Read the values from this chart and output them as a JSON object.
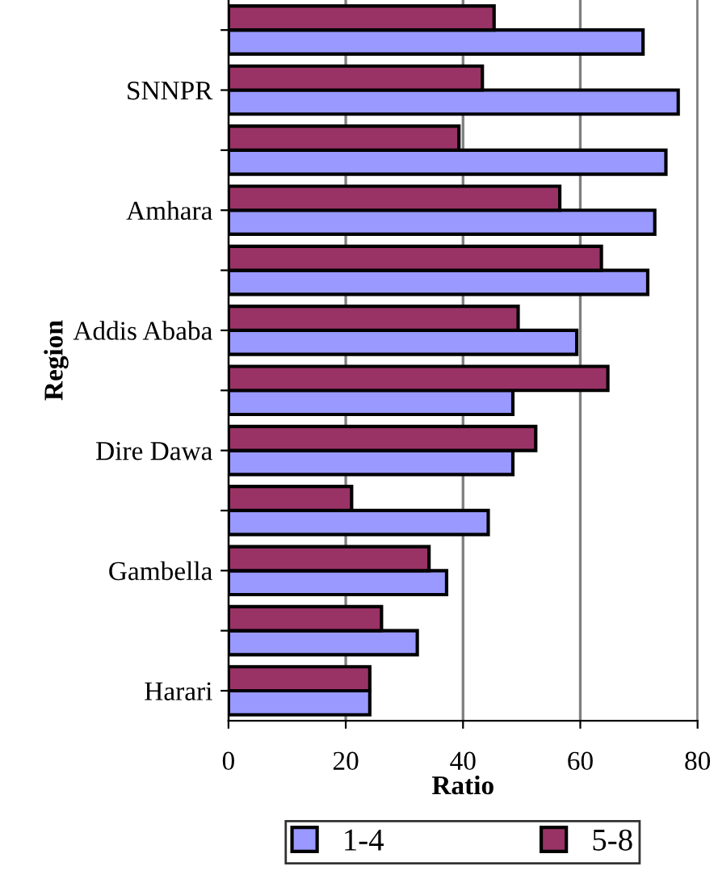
{
  "chart_data": {
    "type": "bar",
    "orientation": "horizontal",
    "xlabel": "Ratio",
    "ylabel": "Region",
    "categories": [
      null,
      "SNNPR",
      null,
      "Amhara",
      null,
      "Addis Ababa",
      null,
      "Dire Dawa",
      null,
      "Gambella",
      null,
      "Harari"
    ],
    "series": [
      {
        "name": "1-4",
        "color": "#9999ff",
        "values": [
          70.7,
          76.7,
          74.6,
          72.7,
          71.5,
          59.4,
          48.5,
          48.5,
          44.3,
          37.2,
          32.2,
          24.1
        ]
      },
      {
        "name": "5-8",
        "color": "#993366",
        "values": [
          45.3,
          43.3,
          39.3,
          56.5,
          63.6,
          49.4,
          64.7,
          52.4,
          21,
          34.2,
          26.1,
          24.1
        ]
      }
    ],
    "xlim": [
      0,
      80
    ],
    "xticks": [
      0,
      20,
      40,
      60,
      80
    ],
    "grid": "x",
    "legend": "bottom"
  }
}
